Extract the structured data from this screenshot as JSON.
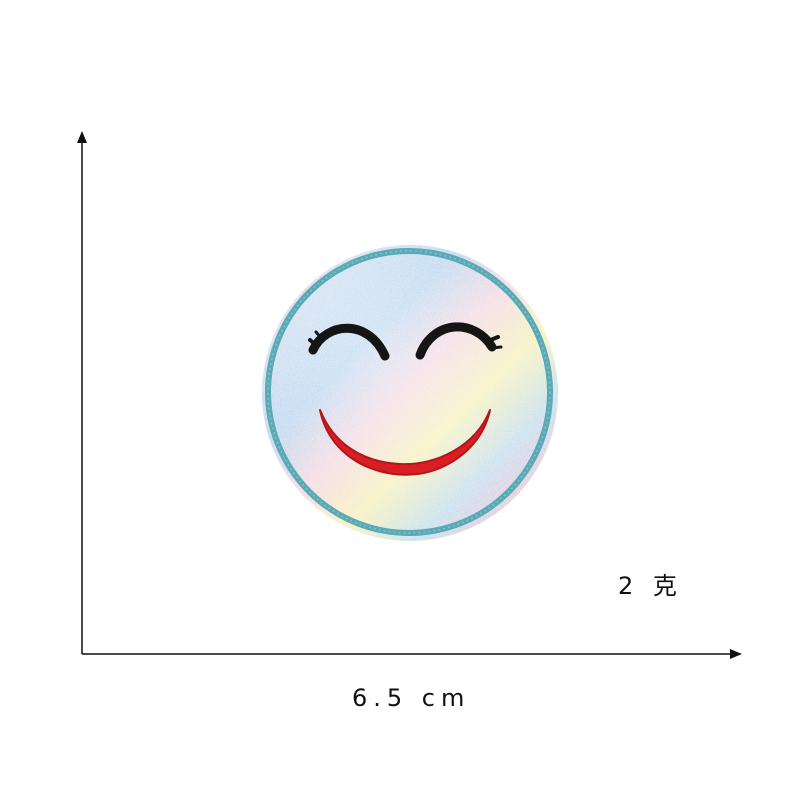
{
  "product": {
    "name_icon": "rainbow-glitter-smiley-patch",
    "weight_label": "2 克",
    "width_label": "6.5 cm"
  },
  "colors": {
    "border_teal": "#5aa9b4",
    "eye_black": "#151515",
    "mouth_red": "#d91f24",
    "gradient_pink": "#f5c6d3",
    "gradient_blue": "#b5d4ec",
    "gradient_yellow": "#f6f2b6",
    "axis": "#111111"
  }
}
